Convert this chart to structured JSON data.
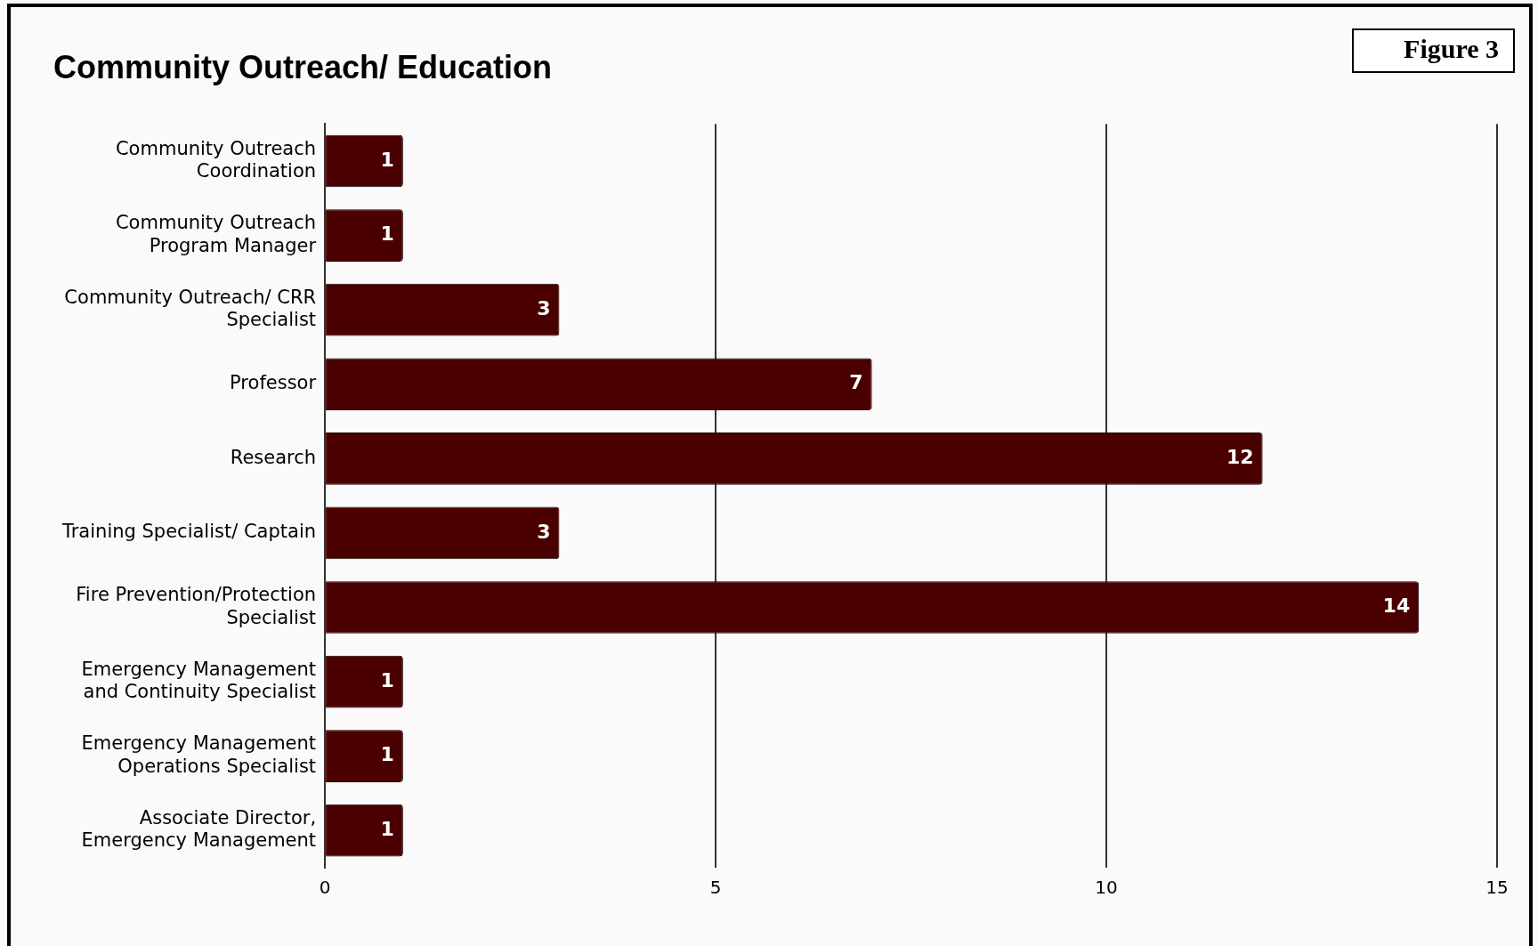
{
  "chart_data": {
    "type": "bar",
    "orientation": "horizontal",
    "title": "Community Outreach/ Education",
    "annotations": [
      "Figure 3"
    ],
    "categories": [
      "Community Outreach Coordination",
      "Community Outreach Program Manager",
      "Community Outreach/ CRR Specialist",
      "Professor",
      "Research",
      "Training Specialist/ Captain",
      "Fire Prevention/Protection Specialist",
      "Emergency Management and Continuity Specialist",
      "Emergency Management Operations Specialist",
      "Associate Director, Emergency Management"
    ],
    "values": [
      1,
      1,
      3,
      7,
      12,
      3,
      14,
      1,
      1,
      1
    ],
    "color": "#4a0000",
    "xlim": [
      0,
      15
    ],
    "xticks": [
      0,
      5,
      10,
      15
    ],
    "grid": "x",
    "legend": false,
    "data_labels": true
  }
}
